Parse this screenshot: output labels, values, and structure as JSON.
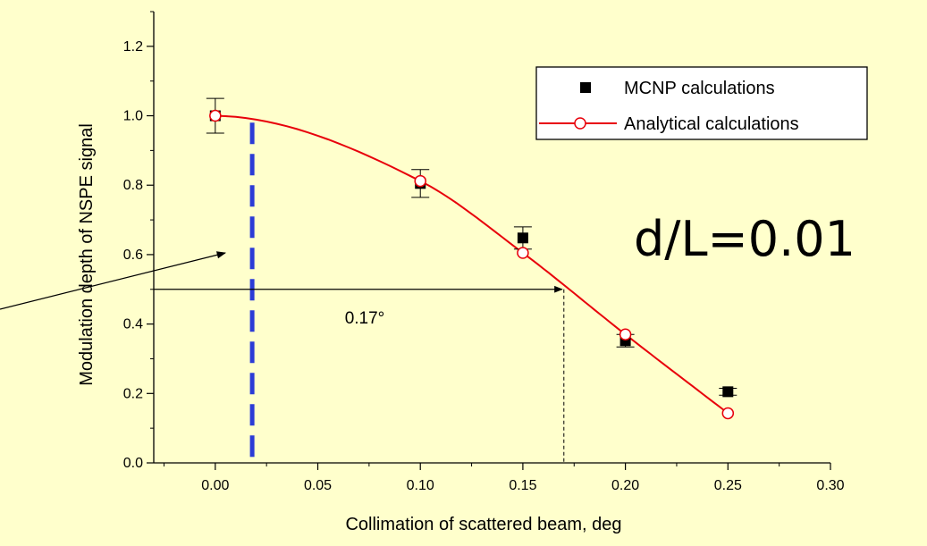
{
  "colors": {
    "background": "#ffffcc",
    "analytical": "#e8000b",
    "mcnp": "#000000",
    "dashed_marker": "#2b3bd6",
    "annotation": "#e8000b"
  },
  "chart_data": {
    "type": "line",
    "xlabel": "Collimation of scattered beam, deg",
    "ylabel": "Modulation depth of NSPE signal",
    "xlim": [
      -0.03,
      0.3
    ],
    "ylim": [
      0.0,
      1.3
    ],
    "xticks": [
      "0.00",
      "0.05",
      "0.10",
      "0.15",
      "0.20",
      "0.25",
      "0.30"
    ],
    "yticks": [
      "0.0",
      "0.2",
      "0.4",
      "0.6",
      "0.8",
      "1.0",
      "1.2"
    ],
    "legend_position": "top-right",
    "series": [
      {
        "name": "MCNP calculations",
        "marker": "filled-square",
        "x": [
          0.0,
          0.1,
          0.15,
          0.2,
          0.25
        ],
        "y": [
          1.0,
          0.805,
          0.648,
          0.352,
          0.205
        ],
        "err": [
          0.05,
          0.04,
          0.032,
          0.018,
          0.01
        ]
      },
      {
        "name": "Analytical calculations",
        "marker": "open-circle",
        "x": [
          0.0,
          0.1,
          0.15,
          0.2,
          0.25
        ],
        "y": [
          1.0,
          0.812,
          0.605,
          0.37,
          0.143
        ]
      }
    ],
    "annotations": {
      "half_width_label": "0.17°",
      "half_width_x": 0.17,
      "half_width_y": 0.5,
      "dashed_line_x": 0.018,
      "ratio_label": "d/L=0.01"
    }
  }
}
